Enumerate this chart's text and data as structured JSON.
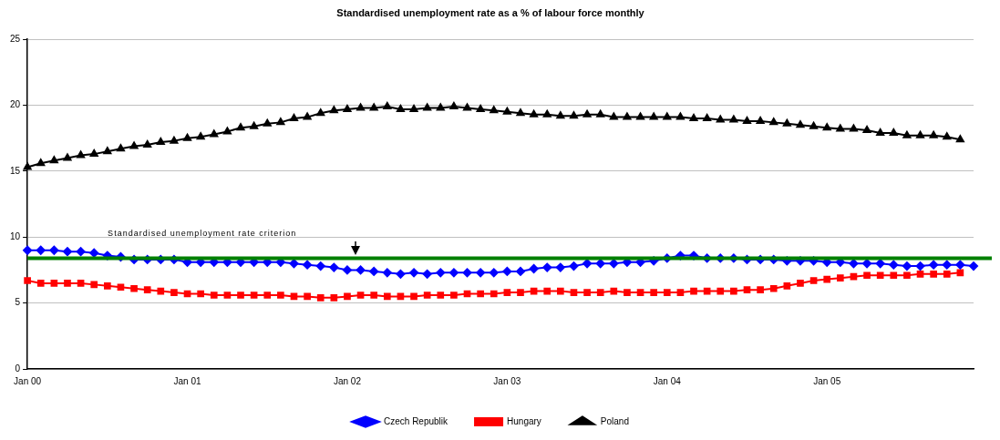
{
  "chart_data": {
    "type": "line",
    "title": "Standardised unemployment rate as a % of labour force monthly",
    "categories": [
      "Jan 00",
      null,
      null,
      null,
      null,
      null,
      null,
      null,
      null,
      null,
      null,
      null,
      "Jan 01",
      null,
      null,
      null,
      null,
      null,
      null,
      null,
      null,
      null,
      null,
      null,
      "Jan 02",
      null,
      null,
      null,
      null,
      null,
      null,
      null,
      null,
      null,
      null,
      null,
      "Jan 03",
      null,
      null,
      null,
      null,
      null,
      null,
      null,
      null,
      null,
      null,
      null,
      "Jan 04",
      null,
      null,
      null,
      null,
      null,
      null,
      null,
      null,
      null,
      null,
      null,
      "Jan 05",
      null,
      null,
      null,
      null,
      null,
      null,
      null,
      null,
      null,
      null,
      null
    ],
    "series": [
      {
        "name": "Czech Republik",
        "color": "#0000ff",
        "marker": "diamond",
        "values": [
          9.0,
          9.0,
          9.0,
          8.9,
          8.9,
          8.8,
          8.6,
          8.5,
          8.3,
          8.3,
          8.3,
          8.3,
          8.1,
          8.1,
          8.1,
          8.1,
          8.1,
          8.1,
          8.1,
          8.1,
          8.0,
          7.9,
          7.8,
          7.7,
          7.5,
          7.5,
          7.4,
          7.3,
          7.2,
          7.3,
          7.2,
          7.3,
          7.3,
          7.3,
          7.3,
          7.3,
          7.4,
          7.4,
          7.6,
          7.7,
          7.7,
          7.8,
          8.0,
          8.0,
          8.0,
          8.1,
          8.1,
          8.2,
          8.4,
          8.6,
          8.6,
          8.4,
          8.4,
          8.4,
          8.3,
          8.3,
          8.3,
          8.2,
          8.2,
          8.2,
          8.1,
          8.1,
          8.0,
          8.0,
          8.0,
          7.9,
          7.8,
          7.8,
          7.9,
          7.9,
          7.9,
          7.8
        ]
      },
      {
        "name": "Hungary",
        "color": "#ff0000",
        "marker": "square",
        "values": [
          6.7,
          6.5,
          6.5,
          6.5,
          6.5,
          6.4,
          6.3,
          6.2,
          6.1,
          6.0,
          5.9,
          5.8,
          5.7,
          5.7,
          5.6,
          5.6,
          5.6,
          5.6,
          5.6,
          5.6,
          5.5,
          5.5,
          5.4,
          5.4,
          5.5,
          5.6,
          5.6,
          5.5,
          5.5,
          5.5,
          5.6,
          5.6,
          5.6,
          5.7,
          5.7,
          5.7,
          5.8,
          5.8,
          5.9,
          5.9,
          5.9,
          5.8,
          5.8,
          5.8,
          5.9,
          5.8,
          5.8,
          5.8,
          5.8,
          5.8,
          5.9,
          5.9,
          5.9,
          5.9,
          6.0,
          6.0,
          6.1,
          6.3,
          6.5,
          6.7,
          6.8,
          6.9,
          7.0,
          7.1,
          7.1,
          7.1,
          7.1,
          7.2,
          7.2,
          7.2,
          7.3,
          null
        ]
      },
      {
        "name": "Poland",
        "color": "#000000",
        "marker": "triangle",
        "values": [
          15.3,
          15.6,
          15.8,
          16.0,
          16.2,
          16.3,
          16.5,
          16.7,
          16.9,
          17.0,
          17.2,
          17.3,
          17.5,
          17.6,
          17.8,
          18.0,
          18.3,
          18.4,
          18.6,
          18.7,
          19.0,
          19.1,
          19.4,
          19.6,
          19.7,
          19.8,
          19.8,
          19.9,
          19.7,
          19.7,
          19.8,
          19.8,
          19.9,
          19.8,
          19.7,
          19.6,
          19.5,
          19.4,
          19.3,
          19.3,
          19.2,
          19.2,
          19.3,
          19.3,
          19.1,
          19.1,
          19.1,
          19.1,
          19.1,
          19.1,
          19.0,
          19.0,
          18.9,
          18.9,
          18.8,
          18.8,
          18.7,
          18.6,
          18.5,
          18.4,
          18.3,
          18.2,
          18.2,
          18.1,
          17.9,
          17.9,
          17.7,
          17.7,
          17.7,
          17.6,
          17.4,
          null
        ]
      }
    ],
    "ylim": [
      0,
      25
    ],
    "yticks": [
      0,
      5,
      10,
      15,
      20,
      25
    ],
    "grid": "y",
    "legend": "bottom",
    "line_style": "solid",
    "ref_lines": [
      {
        "axis": "y",
        "value": 8.4,
        "label": "Standardised unemployment rate criterion",
        "color": "#008000",
        "line_style": "solid"
      }
    ]
  }
}
